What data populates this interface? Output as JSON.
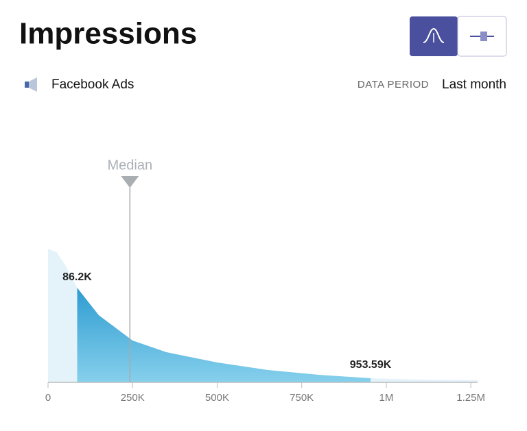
{
  "header": {
    "title": "Impressions",
    "source": "Facebook Ads",
    "period_label": "DATA PERIOD",
    "period_value": "Last month"
  },
  "chart_data": {
    "type": "density",
    "x": [
      0,
      25000,
      50000,
      86200,
      150000,
      250000,
      350000,
      500000,
      650000,
      800000,
      953590,
      1100000,
      1270000
    ],
    "values": [
      195,
      190,
      172,
      138,
      98,
      61,
      44,
      29,
      18,
      11,
      6,
      4,
      3
    ],
    "xlim": [
      0,
      1270000
    ],
    "ylim": [
      0,
      200
    ],
    "xticks": [
      0,
      {
        "value": 250000,
        "label": "250K"
      },
      {
        "value": 500000,
        "label": "500K"
      },
      {
        "value": 750000,
        "label": "750K"
      },
      {
        "value": 1000000,
        "label": "1M"
      },
      {
        "value": 1250000,
        "label": "1.25M"
      }
    ],
    "median": {
      "label": "Median",
      "value": 242000
    },
    "range": {
      "values": [
        86200,
        953590
      ],
      "value_labels": [
        "86.2K",
        "953.59K"
      ]
    },
    "color": "#e4f2fa",
    "highlight_color": "#0a86c6"
  }
}
